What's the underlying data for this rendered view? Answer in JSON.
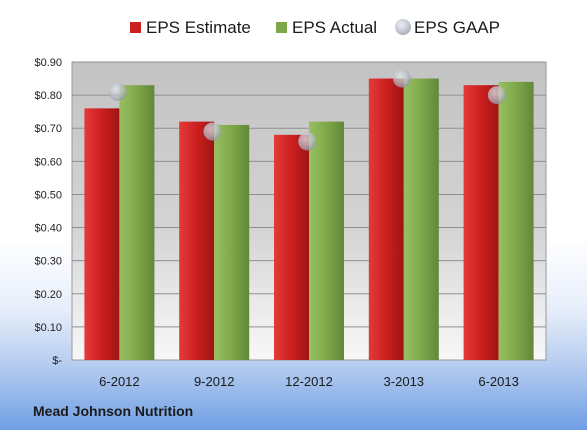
{
  "footer": {
    "company": "Mead Johnson Nutrition"
  },
  "chart_data": {
    "type": "bar",
    "title": "",
    "xlabel": "",
    "ylabel": "",
    "categories": [
      "6-2012",
      "9-2012",
      "12-2012",
      "3-2013",
      "6-2013"
    ],
    "series": [
      {
        "name": "EPS Estimate",
        "kind": "bar",
        "color": "#cc1f1f",
        "values": [
          0.76,
          0.72,
          0.68,
          0.85,
          0.83
        ]
      },
      {
        "name": "EPS Actual",
        "kind": "bar",
        "color": "#7fa84a",
        "values": [
          0.83,
          0.71,
          0.72,
          0.85,
          0.84
        ]
      },
      {
        "name": "EPS GAAP",
        "kind": "marker",
        "color": "#b7bec8",
        "values": [
          0.81,
          0.69,
          0.66,
          0.85,
          0.8
        ]
      }
    ],
    "ylim": [
      0,
      0.9
    ],
    "yticks": [
      0,
      0.1,
      0.2,
      0.3,
      0.4,
      0.5,
      0.6,
      0.7,
      0.8,
      0.9
    ],
    "ytick_labels": [
      "$-",
      "$0.10",
      "$0.20",
      "$0.30",
      "$0.40",
      "$0.50",
      "$0.60",
      "$0.70",
      "$0.80",
      "$0.90"
    ],
    "grid": true,
    "legend_position": "top"
  }
}
